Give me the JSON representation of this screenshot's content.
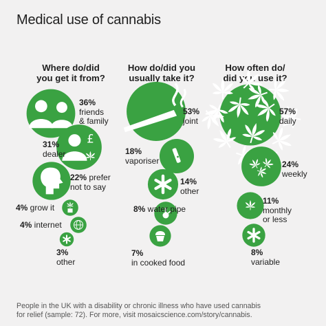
{
  "title": "Medical use of cannabis",
  "colors": {
    "bubble": "#3aa242",
    "icon": "#ffffff",
    "background": "#f2f1f1"
  },
  "footer": {
    "line1": "People in the UK with a disability or chronic illness who have used cannabis",
    "line2": "for relief (sample: 72). For more, visit mosaicscience.com/story/cannabis."
  },
  "chart_data": [
    {
      "type": "bubble",
      "title": "Where do/did you get it from?",
      "title_lines": [
        "Where do/did",
        "you get it from?"
      ],
      "items": [
        {
          "value": 36,
          "pct": "36%",
          "desc": [
            "friends",
            "& family"
          ],
          "icon": "people-icon"
        },
        {
          "value": 31,
          "pct": "31%",
          "desc": [
            "dealer"
          ],
          "icon": "dealer-icon"
        },
        {
          "value": 22,
          "pct": "22%",
          "desc": [
            "prefer",
            "not to say"
          ],
          "icon": "head-icon"
        },
        {
          "value": 4,
          "pct": "4%",
          "desc": [
            "grow it"
          ],
          "icon": "plant-icon"
        },
        {
          "value": 4,
          "pct": "4%",
          "desc": [
            "internet"
          ],
          "icon": "globe-icon"
        },
        {
          "value": 3,
          "pct": "3%",
          "desc": [
            "other"
          ],
          "icon": "asterisk-icon"
        }
      ]
    },
    {
      "type": "bubble",
      "title": "How do/did you usually take it?",
      "title_lines": [
        "How do/did you",
        "usually take it?"
      ],
      "items": [
        {
          "value": 53,
          "pct": "53%",
          "desc": [
            "joint"
          ],
          "icon": "joint-icon"
        },
        {
          "value": 18,
          "pct": "18%",
          "desc": [
            "vaporiser"
          ],
          "icon": "vaporiser-icon"
        },
        {
          "value": 14,
          "pct": "14%",
          "desc": [
            "other"
          ],
          "icon": "asterisk-icon"
        },
        {
          "value": 8,
          "pct": "8%",
          "desc": [
            "water pipe"
          ],
          "icon": "water-pipe-icon"
        },
        {
          "value": 7,
          "pct": "7%",
          "desc": [
            "in cooked food"
          ],
          "icon": "cupcake-icon"
        }
      ]
    },
    {
      "type": "bubble",
      "title": "How often do/did you use it?",
      "title_lines": [
        "How often do/",
        "did you use it?"
      ],
      "items": [
        {
          "value": 57,
          "pct": "57%",
          "desc": [
            "daily"
          ],
          "icon": "leaves-many-icon"
        },
        {
          "value": 24,
          "pct": "24%",
          "desc": [
            "weekly"
          ],
          "icon": "leaves-few-icon"
        },
        {
          "value": 11,
          "pct": "11%",
          "desc": [
            "monthly",
            "or less"
          ],
          "icon": "leaf-icon"
        },
        {
          "value": 8,
          "pct": "8%",
          "desc": [
            "variable"
          ],
          "icon": "asterisk-icon"
        }
      ]
    }
  ]
}
